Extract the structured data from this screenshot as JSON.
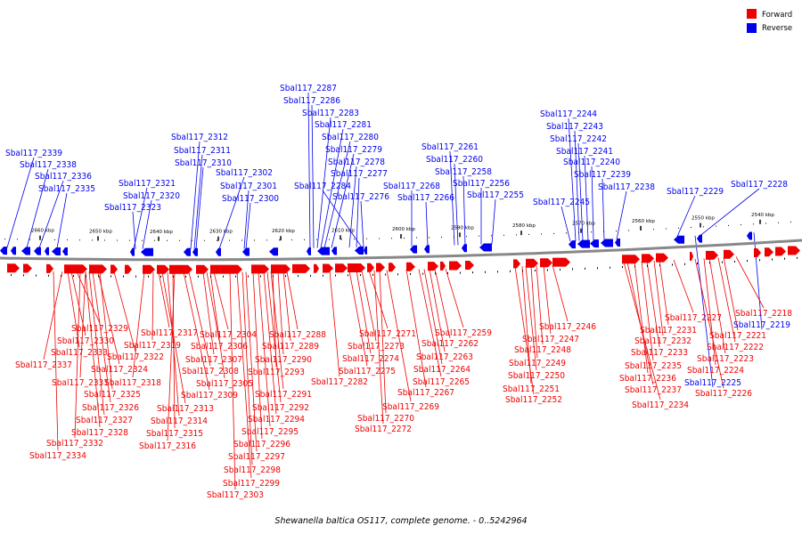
{
  "caption": "Shewanella baltica OS117, complete genome. - 0..5242964",
  "legend": [
    {
      "label": "Forward",
      "color": "#ee0000"
    },
    {
      "label": "Reverse",
      "color": "#0000ee"
    }
  ],
  "scale_ticks": [
    "2660 kbp",
    "2650 kbp",
    "2640 kbp",
    "2630 kbp",
    "2620 kbp",
    "2610 kbp",
    "2600 kbp",
    "2590 kbp",
    "2580 kbp",
    "2570 kbp",
    "2560 kbp",
    "2550 kbp",
    "2540 kbp"
  ],
  "reverse_genes": [
    "Sbal117_2339",
    "Sbal117_2338",
    "Sbal117_2336",
    "Sbal117_2335",
    "Sbal117_2321",
    "Sbal117_2320",
    "Sbal117_2323",
    "Sbal117_2312",
    "Sbal117_2311",
    "Sbal117_2310",
    "Sbal117_2302",
    "Sbal117_2301",
    "Sbal117_2300",
    "Sbal117_2287",
    "Sbal117_2286",
    "Sbal117_2283",
    "Sbal117_2281",
    "Sbal117_2280",
    "Sbal117_2279",
    "Sbal117_2278",
    "Sbal117_2277",
    "Sbal117_2284",
    "Sbal117_2276",
    "Sbal117_2268",
    "Sbal117_2266",
    "Sbal117_2261",
    "Sbal117_2260",
    "Sbal117_2258",
    "Sbal117_2256",
    "Sbal117_2255",
    "Sbal117_2244",
    "Sbal117_2243",
    "Sbal117_2242",
    "Sbal117_2241",
    "Sbal117_2240",
    "Sbal117_2239",
    "Sbal117_2238",
    "Sbal117_2245",
    "Sbal117_2229",
    "Sbal117_2228",
    "Sbal117_2219",
    "Sbal117_2225"
  ],
  "forward_genes": [
    "Sbal117_2329",
    "Sbal117_2330",
    "Sbal117_2333",
    "Sbal117_2337",
    "Sbal117_2331",
    "Sbal117_2332",
    "Sbal117_2334",
    "Sbal117_2326",
    "Sbal117_2327",
    "Sbal117_2328",
    "Sbal117_2324",
    "Sbal117_2325",
    "Sbal117_2322",
    "Sbal117_2319",
    "Sbal117_2318",
    "Sbal117_2317",
    "Sbal117_2313",
    "Sbal117_2314",
    "Sbal117_2315",
    "Sbal117_2316",
    "Sbal117_2309",
    "Sbal117_2308",
    "Sbal117_2307",
    "Sbal117_2306",
    "Sbal117_2304",
    "Sbal117_2305",
    "Sbal117_2303",
    "Sbal117_2299",
    "Sbal117_2298",
    "Sbal117_2297",
    "Sbal117_2296",
    "Sbal117_2295",
    "Sbal117_2294",
    "Sbal117_2292",
    "Sbal117_2291",
    "Sbal117_2293",
    "Sbal117_2290",
    "Sbal117_2289",
    "Sbal117_2288",
    "Sbal117_2282",
    "Sbal117_2275",
    "Sbal117_2274",
    "Sbal117_2273",
    "Sbal117_2271",
    "Sbal117_2272",
    "Sbal117_2270",
    "Sbal117_2269",
    "Sbal117_2267",
    "Sbal117_2265",
    "Sbal117_2264",
    "Sbal117_2263",
    "Sbal117_2262",
    "Sbal117_2259",
    "Sbal117_2252",
    "Sbal117_2251",
    "Sbal117_2250",
    "Sbal117_2249",
    "Sbal117_2248",
    "Sbal117_2247",
    "Sbal117_2246",
    "Sbal117_2234",
    "Sbal117_2237",
    "Sbal117_2236",
    "Sbal117_2235",
    "Sbal117_2233",
    "Sbal117_2232",
    "Sbal117_2231",
    "Sbal117_2227",
    "Sbal117_2226",
    "Sbal117_2224",
    "Sbal117_2223",
    "Sbal117_2222",
    "Sbal117_2221",
    "Sbal117_2218"
  ]
}
